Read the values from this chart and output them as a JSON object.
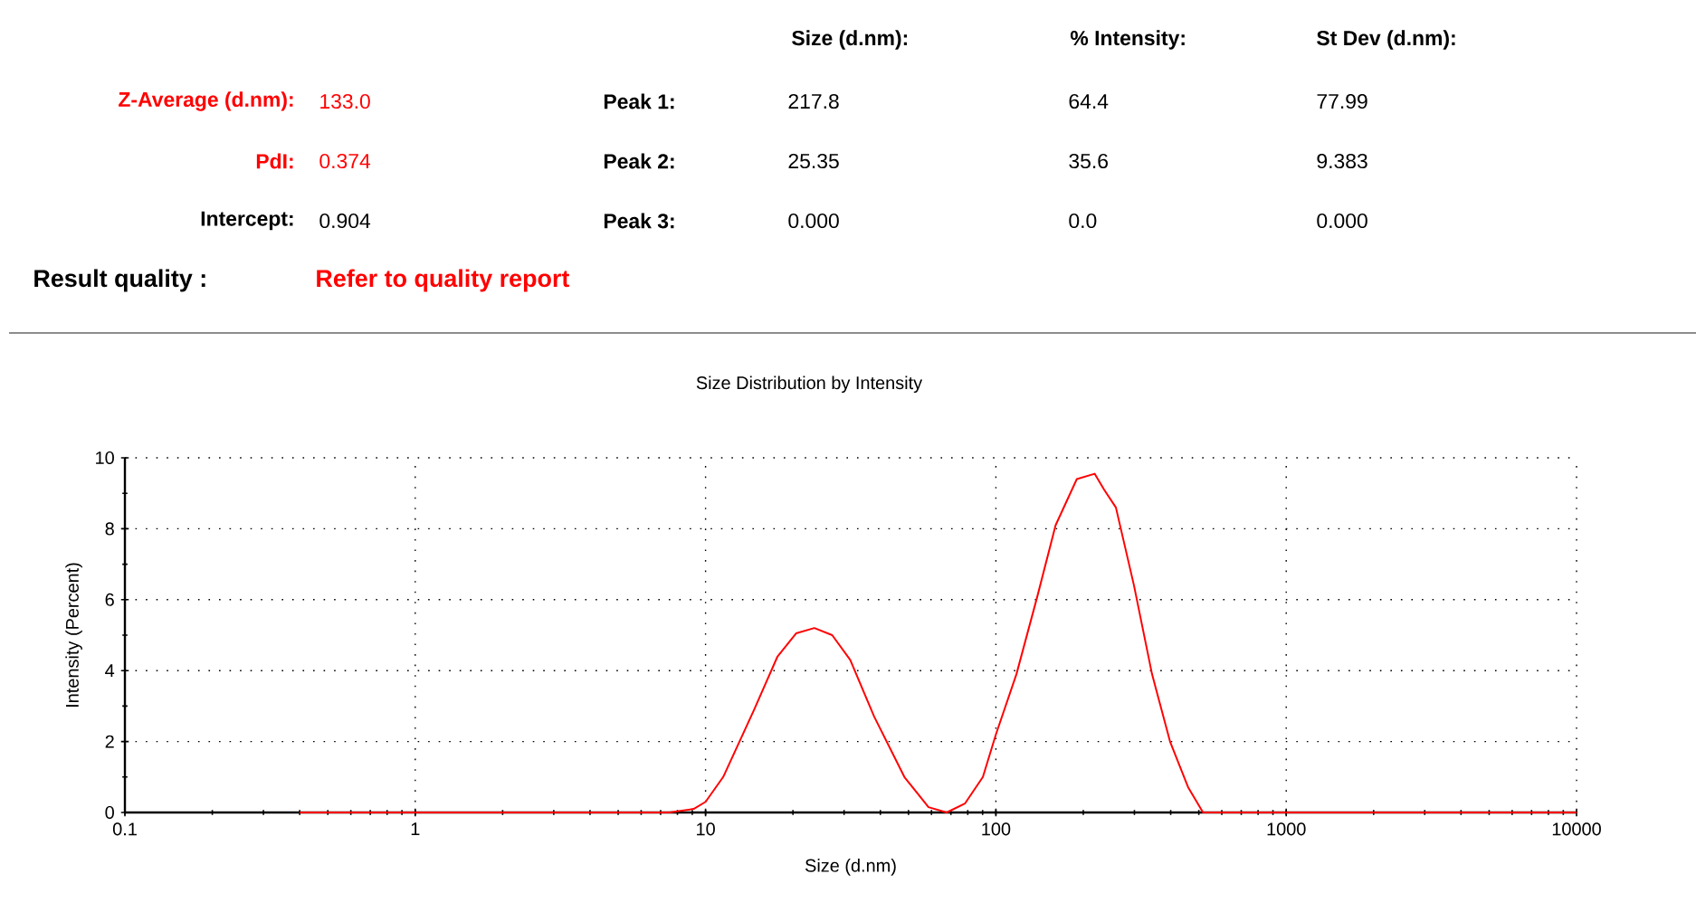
{
  "chart_data": {
    "type": "line",
    "title": "Size Distribution by Intensity",
    "xlabel": "Size (d.nm)",
    "ylabel": "Intensity (Percent)",
    "x": [
      0.4,
      7.5,
      9.1,
      10,
      11.5,
      14.7,
      17.7,
      20.5,
      23.7,
      27.3,
      31.5,
      38.1,
      48.4,
      58.6,
      67.7,
      78.2,
      90.2,
      100,
      117.7,
      139,
      160.6,
      190,
      219,
      236,
      259,
      299,
      345,
      398,
      460,
      517,
      10000
    ],
    "series": [
      {
        "color": "#ff0000",
        "values": [
          0,
          0,
          0.1,
          0.3,
          1.0,
          2.9,
          4.4,
          5.05,
          5.2,
          5.0,
          4.3,
          2.7,
          1.0,
          0.15,
          0,
          0.25,
          1.0,
          2.2,
          3.9,
          6.1,
          8.1,
          9.4,
          9.55,
          9.1,
          8.6,
          6.4,
          3.9,
          2.0,
          0.7,
          0,
          0
        ]
      }
    ],
    "xlim": [
      0.1,
      10000
    ],
    "ylim": [
      0,
      10
    ],
    "xticks": [
      0.1,
      1,
      10,
      100,
      1000,
      10000
    ],
    "yticks": [
      0,
      2,
      4,
      6,
      8,
      10
    ],
    "log": "x",
    "grid": true,
    "annotations": [
      "Size (d.nm):",
      "% Intensity:",
      "St Dev (d.nm):",
      "Z-Average (d.nm):",
      "133.0",
      "Peak 1:",
      "217.8",
      "64.4",
      "77.99",
      "PdI:",
      "0.374",
      "Peak 2:",
      "25.35",
      "35.6",
      "9.383",
      "Intercept:",
      "0.904",
      "Peak 3:",
      "0.000",
      "0.0",
      "0.000",
      "Result quality :",
      "Refer to quality report"
    ]
  }
}
